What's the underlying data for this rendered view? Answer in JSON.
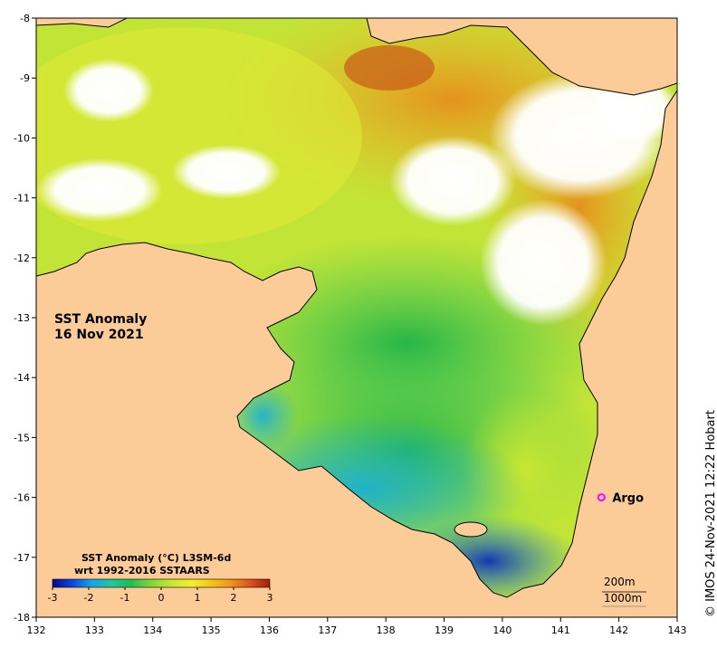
{
  "map": {
    "title_line1": "SST Anomaly",
    "title_line2": "16 Nov 2021",
    "x_ticks": [
      "132",
      "133",
      "134",
      "135",
      "136",
      "137",
      "138",
      "139",
      "140",
      "141",
      "142",
      "143"
    ],
    "y_ticks": [
      "-8",
      "-9",
      "-10",
      "-11",
      "-12",
      "-13",
      "-14",
      "-15",
      "-16",
      "-17",
      "-18"
    ],
    "lon_range": [
      132,
      143
    ],
    "lat_range": [
      -18,
      -8
    ],
    "land_color": "#fbcb98",
    "no_data_color": "#ffffff",
    "coast_color": "#000000"
  },
  "colorbar": {
    "title_line1": "SST Anomaly (°C) L3SM-6d",
    "title_line2": "wrt 1992-2016 SSTAARS",
    "ticks": [
      "-3",
      "-2",
      "-1",
      "0",
      "1",
      "2",
      "3"
    ],
    "range": [
      -3,
      3
    ],
    "colors": [
      "#08088a",
      "#0a46e0",
      "#17a3e8",
      "#1ec6a3",
      "#1cbf55",
      "#7fd43a",
      "#c9e82f",
      "#f4ef2a",
      "#f5c518",
      "#f0961a",
      "#d9541a",
      "#a51c0f"
    ]
  },
  "marker": {
    "label": "Argo",
    "lon": 141.7,
    "lat": -16.0,
    "color": "#ff00ff"
  },
  "contours": {
    "label_200": "200m",
    "label_1000": "1000m"
  },
  "credit": "© IMOS 24-Nov-2021 12:22 Hobart"
}
